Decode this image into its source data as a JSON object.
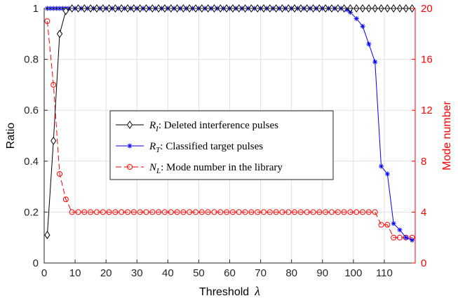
{
  "chart_data": {
    "type": "line",
    "xlabel": "Threshold",
    "xlabel_symbol": "λ",
    "ylabel_left": "Ratio",
    "ylabel_right": "Mode number",
    "xlim": [
      0,
      120
    ],
    "ylim_left": [
      0,
      1
    ],
    "ylim_right": [
      0,
      20
    ],
    "x_ticks": [
      0,
      10,
      20,
      30,
      40,
      50,
      60,
      70,
      80,
      90,
      100,
      110
    ],
    "y_ticks_left": [
      0,
      0.2,
      0.4,
      0.6,
      0.8,
      1
    ],
    "y_ticks_right": [
      0,
      4,
      8,
      12,
      16,
      20
    ],
    "grid": true,
    "legend_position": "center-left",
    "colors": {
      "ri": "#000000",
      "rt": "#0000ff",
      "nl": "#ff0000",
      "right_axis": "#ff0000"
    },
    "series": [
      {
        "key": "ri",
        "name_symbol": "R",
        "name_sub": "I",
        "name_text": ": Deleted interference pulses",
        "axis": "left",
        "marker": "diamond",
        "line": "solid",
        "x": [
          1,
          3,
          5,
          7,
          9,
          11,
          13,
          15,
          17,
          19,
          21,
          23,
          25,
          27,
          29,
          31,
          33,
          35,
          37,
          39,
          41,
          43,
          45,
          47,
          49,
          51,
          53,
          55,
          57,
          59,
          61,
          63,
          65,
          67,
          69,
          71,
          73,
          75,
          77,
          79,
          81,
          83,
          85,
          87,
          89,
          91,
          93,
          95,
          97,
          99,
          101,
          103,
          105,
          107,
          109,
          111,
          113,
          115,
          117,
          119
        ],
        "y": [
          0.11,
          0.48,
          0.9,
          0.99,
          1,
          1,
          1,
          1,
          1,
          1,
          1,
          1,
          1,
          1,
          1,
          1,
          1,
          1,
          1,
          1,
          1,
          1,
          1,
          1,
          1,
          1,
          1,
          1,
          1,
          1,
          1,
          1,
          1,
          1,
          1,
          1,
          1,
          1,
          1,
          1,
          1,
          1,
          1,
          1,
          1,
          1,
          1,
          1,
          1,
          1,
          1,
          1,
          1,
          1,
          1,
          1,
          1,
          1,
          1,
          1
        ]
      },
      {
        "key": "rt",
        "name_symbol": "R",
        "name_sub": "T",
        "name_text": ": Classified target pulses",
        "axis": "left",
        "marker": "asterisk",
        "line": "solid",
        "x": [
          1,
          2,
          3,
          4,
          5,
          6,
          7,
          8,
          9,
          10,
          11,
          12,
          13,
          14,
          15,
          16,
          17,
          18,
          19,
          20,
          21,
          22,
          23,
          24,
          25,
          26,
          27,
          28,
          29,
          30,
          31,
          32,
          33,
          34,
          35,
          36,
          37,
          38,
          39,
          40,
          41,
          42,
          43,
          44,
          45,
          46,
          47,
          48,
          49,
          50,
          51,
          52,
          53,
          54,
          55,
          56,
          57,
          58,
          59,
          60,
          61,
          62,
          63,
          64,
          65,
          66,
          67,
          68,
          69,
          70,
          71,
          72,
          73,
          74,
          75,
          76,
          77,
          78,
          79,
          80,
          81,
          82,
          83,
          84,
          85,
          86,
          87,
          88,
          89,
          90,
          91,
          92,
          93,
          94,
          95,
          96,
          97,
          98,
          99,
          101,
          103,
          105,
          107,
          109,
          111,
          113,
          115,
          117,
          119
        ],
        "y": [
          1,
          1,
          1,
          1,
          1,
          1,
          1,
          1,
          1,
          1,
          1,
          1,
          1,
          1,
          1,
          1,
          1,
          1,
          1,
          1,
          1,
          1,
          1,
          1,
          1,
          1,
          1,
          1,
          1,
          1,
          1,
          1,
          1,
          1,
          1,
          1,
          1,
          1,
          1,
          1,
          1,
          1,
          1,
          1,
          1,
          1,
          1,
          1,
          1,
          1,
          1,
          1,
          1,
          1,
          1,
          1,
          1,
          1,
          1,
          1,
          1,
          1,
          1,
          1,
          1,
          1,
          1,
          1,
          1,
          1,
          1,
          1,
          1,
          1,
          1,
          1,
          1,
          1,
          1,
          1,
          1,
          1,
          1,
          1,
          1,
          1,
          1,
          1,
          1,
          1,
          1,
          1,
          1,
          1,
          1,
          1,
          1,
          0.995,
          0.985,
          0.96,
          0.93,
          0.86,
          0.79,
          0.38,
          0.35,
          0.155,
          0.13,
          0.1,
          0.09
        ]
      },
      {
        "key": "nl",
        "name_symbol": "N",
        "name_sub": "L",
        "name_text": ": Mode number in the library",
        "axis": "right",
        "marker": "circle",
        "line": "dashed",
        "x": [
          1,
          3,
          5,
          7,
          9,
          11,
          13,
          15,
          17,
          19,
          21,
          23,
          25,
          27,
          29,
          31,
          33,
          35,
          37,
          39,
          41,
          43,
          45,
          47,
          49,
          51,
          53,
          55,
          57,
          59,
          61,
          63,
          65,
          67,
          69,
          71,
          73,
          75,
          77,
          79,
          81,
          83,
          85,
          87,
          89,
          91,
          93,
          95,
          97,
          99,
          101,
          103,
          105,
          107,
          109,
          111,
          113,
          115,
          117,
          119
        ],
        "y": [
          19,
          14,
          7,
          5,
          4,
          4,
          4,
          4,
          4,
          4,
          4,
          4,
          4,
          4,
          4,
          4,
          4,
          4,
          4,
          4,
          4,
          4,
          4,
          4,
          4,
          4,
          4,
          4,
          4,
          4,
          4,
          4,
          4,
          4,
          4,
          4,
          4,
          4,
          4,
          4,
          4,
          4,
          4,
          4,
          4,
          4,
          4,
          4,
          4,
          4,
          4,
          4,
          4,
          4,
          3,
          3,
          2,
          2,
          2,
          2
        ]
      }
    ]
  }
}
